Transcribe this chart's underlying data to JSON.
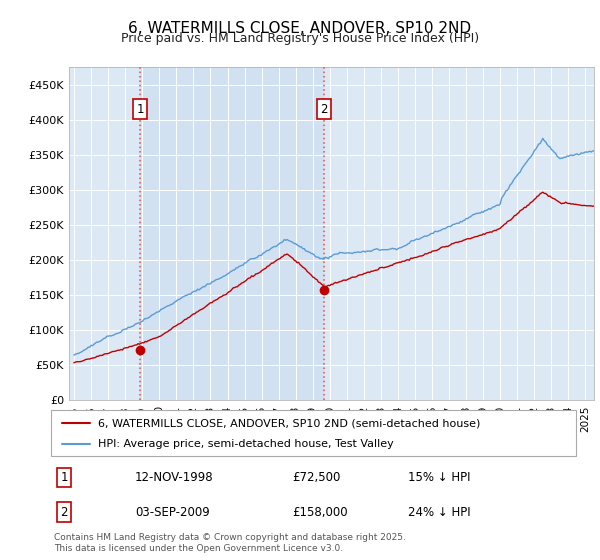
{
  "title": "6, WATERMILLS CLOSE, ANDOVER, SP10 2ND",
  "subtitle": "Price paid vs. HM Land Registry's House Price Index (HPI)",
  "legend_line1": "6, WATERMILLS CLOSE, ANDOVER, SP10 2ND (semi-detached house)",
  "legend_line2": "HPI: Average price, semi-detached house, Test Valley",
  "annotation1_date": "12-NOV-1998",
  "annotation1_price": "£72,500",
  "annotation1_hpi": "15% ↓ HPI",
  "annotation2_date": "03-SEP-2009",
  "annotation2_price": "£158,000",
  "annotation2_hpi": "24% ↓ HPI",
  "footer": "Contains HM Land Registry data © Crown copyright and database right 2025.\nThis data is licensed under the Open Government Licence v3.0.",
  "hpi_color": "#5b9bd5",
  "price_color": "#c00000",
  "vline_color": "#e06060",
  "bg_color": "#dce9f5",
  "band_color": "#ccddf0",
  "sale1_year": 1998.87,
  "sale1_price": 72500,
  "sale2_year": 2009.67,
  "sale2_price": 158000,
  "ylim_max": 475000,
  "seed": 12
}
